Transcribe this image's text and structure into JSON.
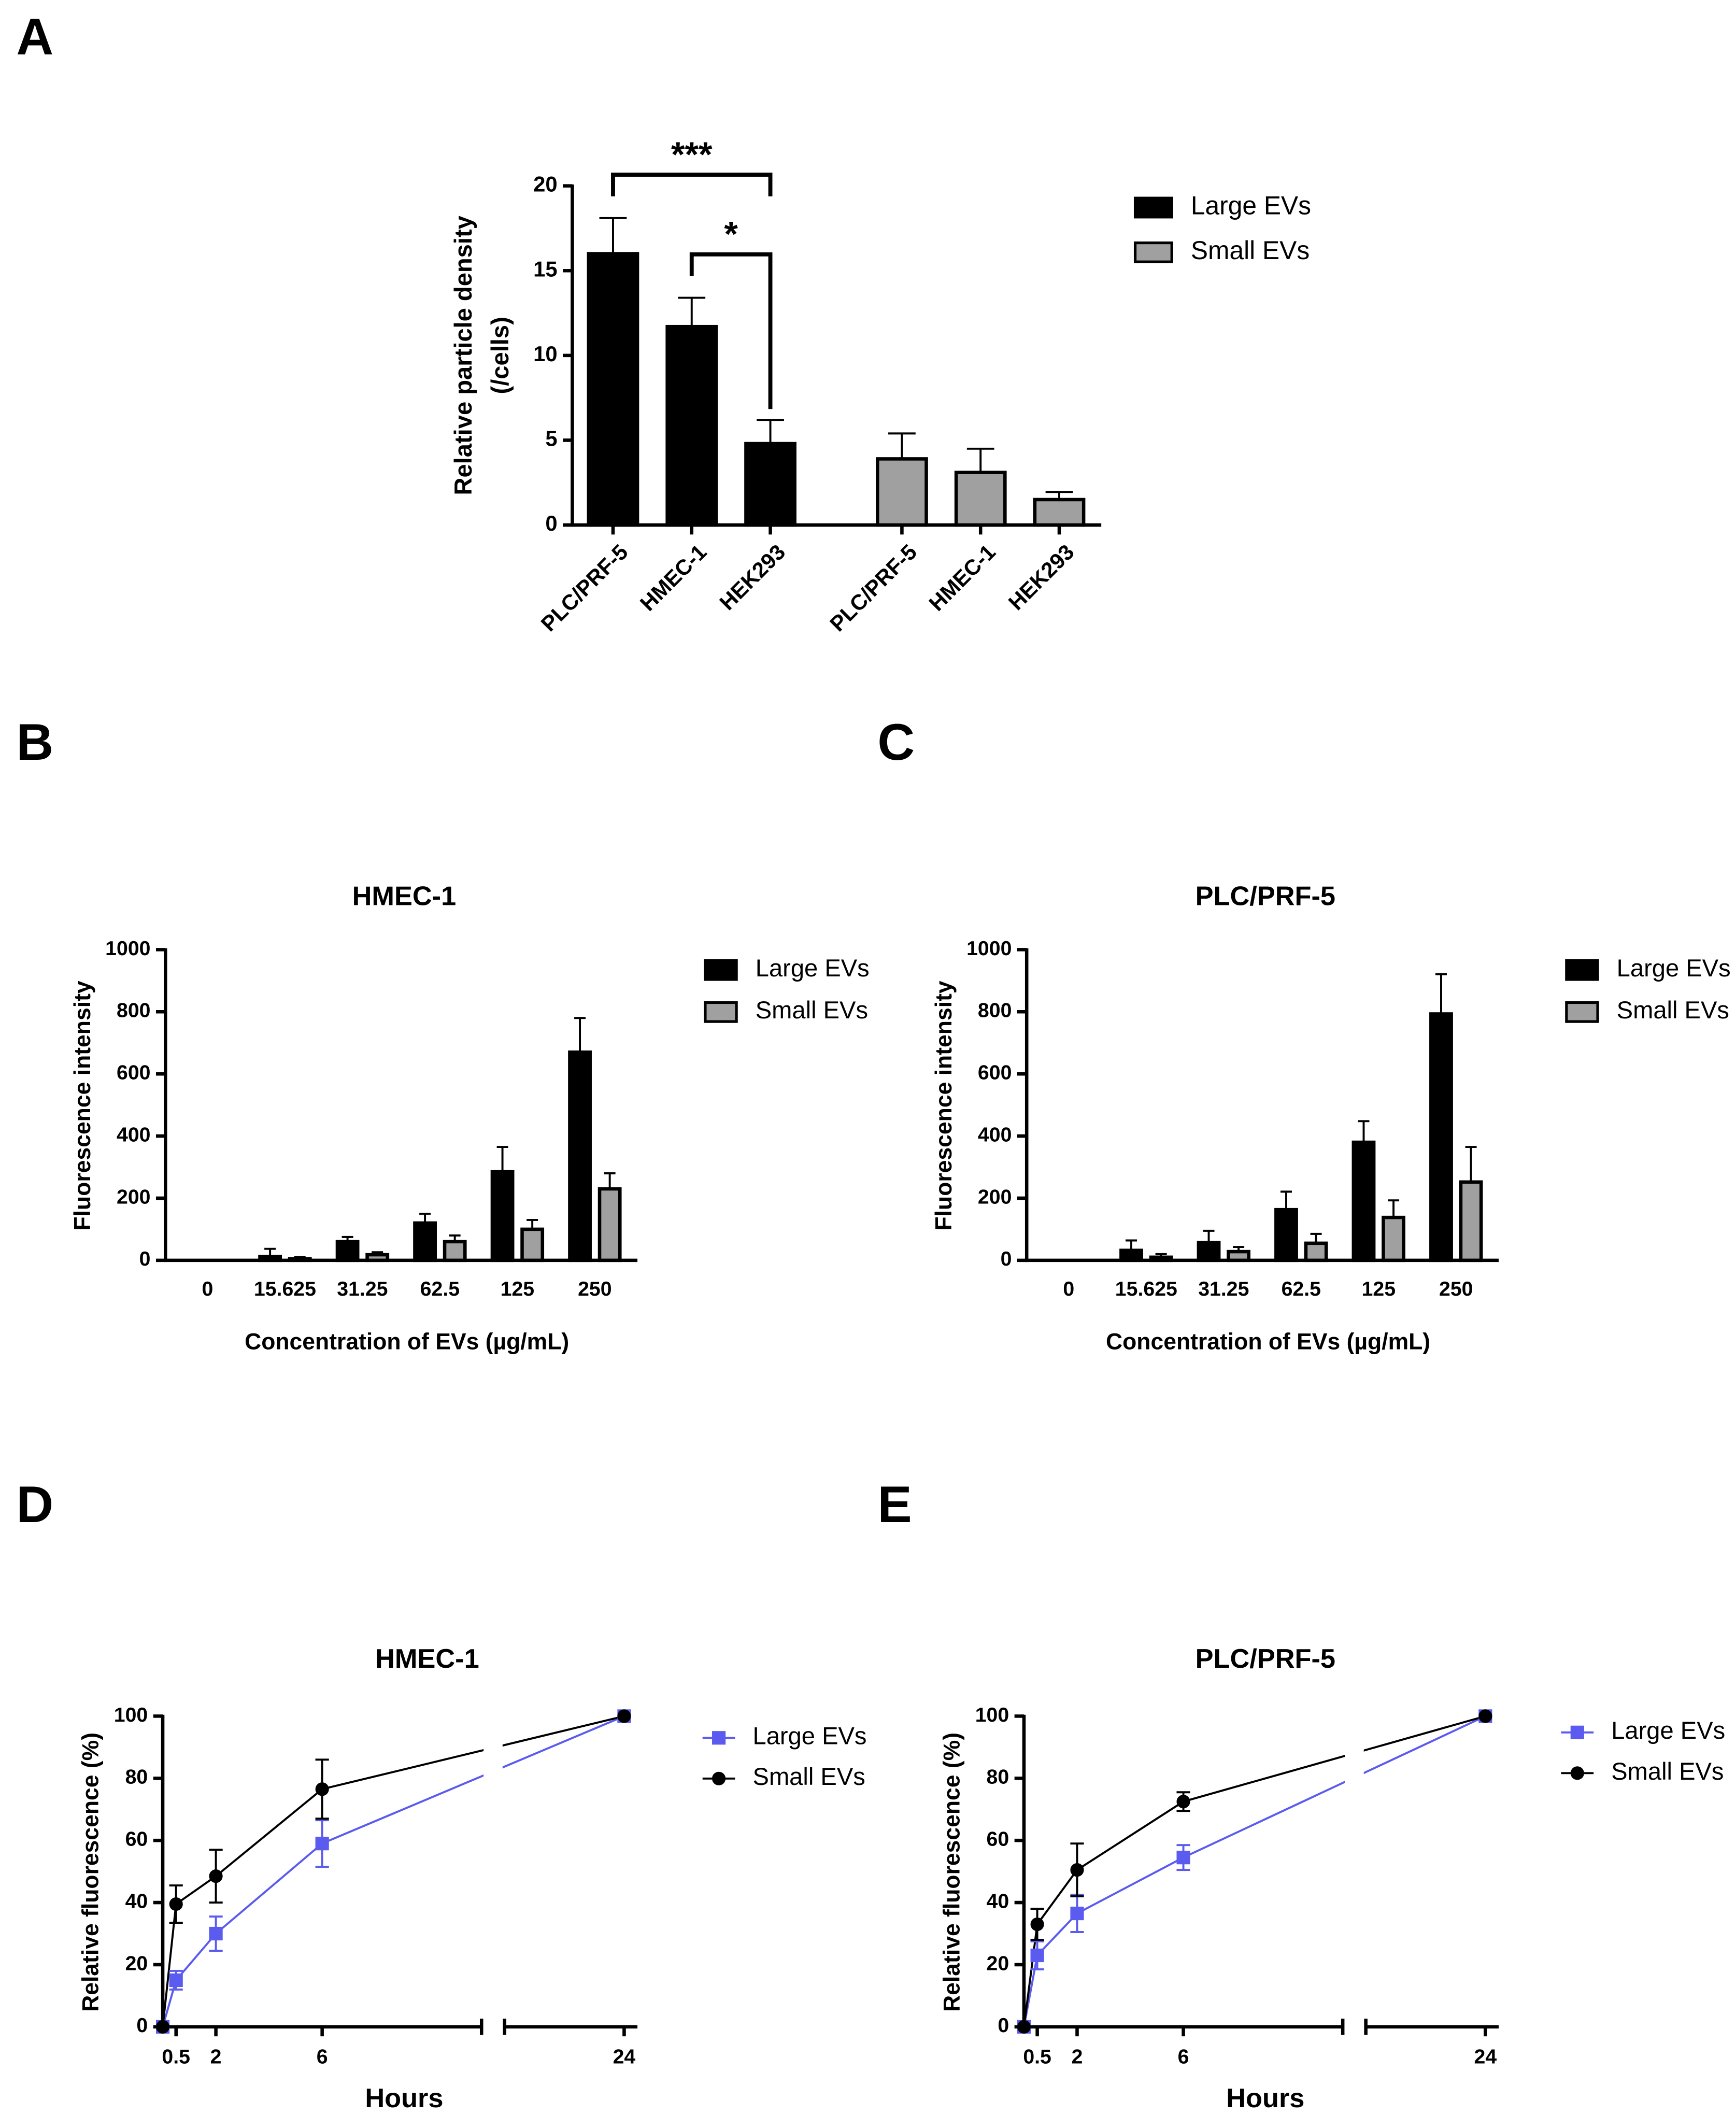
{
  "chart_data": [
    {
      "type": "bar",
      "panel_label": "A",
      "grouping": "series",
      "categories": [
        "PLC/PRF-5",
        "HMEC-1",
        "HEK293"
      ],
      "series": [
        {
          "name": "Large EVs",
          "color": "#000000",
          "values": [
            16,
            11.7,
            4.8
          ],
          "errors": [
            2.1,
            1.7,
            1.4
          ]
        },
        {
          "name": "Small EVs",
          "color": "#a0a0a0",
          "values": [
            3.9,
            3.1,
            1.5
          ],
          "errors": [
            1.5,
            1.4,
            0.45
          ]
        }
      ],
      "ylabel": [
        "Relative particle density",
        "(/cells)"
      ],
      "ylim": [
        0,
        20
      ],
      "yticks": [
        0,
        5,
        10,
        15,
        20
      ],
      "legend": "right",
      "annotations": [
        {
          "text": "***",
          "from": 0,
          "to": 2
        },
        {
          "text": "*",
          "from": 1,
          "to": 2
        }
      ]
    },
    {
      "type": "bar",
      "panel_label": "B",
      "grouping": "category",
      "title": "HMEC-1",
      "categories": [
        "0",
        "15.625",
        "31.25",
        "62.5",
        "125",
        "250"
      ],
      "series": [
        {
          "name": "Large EVs",
          "color": "#000000",
          "values": [
            0,
            12,
            60,
            120,
            285,
            670
          ],
          "errors": [
            0,
            25,
            15,
            30,
            80,
            110
          ]
        },
        {
          "name": "Small EVs",
          "color": "#a0a0a0",
          "values": [
            0,
            5,
            18,
            60,
            100,
            230
          ],
          "errors": [
            0,
            5,
            8,
            20,
            30,
            50
          ]
        }
      ],
      "xlabel": "Concentration of EVs (µg/mL)",
      "ylabel": [
        "Fluorescence intensity"
      ],
      "ylim": [
        0,
        1000
      ],
      "yticks": [
        0,
        200,
        400,
        600,
        800,
        1000
      ],
      "legend": "right"
    },
    {
      "type": "bar",
      "panel_label": "C",
      "grouping": "category",
      "title": "PLC/PRF-5",
      "categories": [
        "0",
        "15.625",
        "31.25",
        "62.5",
        "125",
        "250"
      ],
      "series": [
        {
          "name": "Large EVs",
          "color": "#000000",
          "values": [
            0,
            32,
            57,
            163,
            380,
            793
          ],
          "errors": [
            0,
            32,
            38,
            58,
            68,
            128
          ]
        },
        {
          "name": "Small EVs",
          "color": "#a0a0a0",
          "values": [
            0,
            10,
            28,
            55,
            138,
            252
          ],
          "errors": [
            0,
            10,
            15,
            30,
            55,
            113
          ]
        }
      ],
      "xlabel": "Concentration of EVs (µg/mL)",
      "ylabel": [
        "Fluorescence intensity"
      ],
      "ylim": [
        0,
        1000
      ],
      "yticks": [
        0,
        200,
        400,
        600,
        800,
        1000
      ],
      "legend": "right"
    },
    {
      "type": "line",
      "panel_label": "D",
      "title": "HMEC-1",
      "x": [
        0,
        0.5,
        2,
        6,
        24
      ],
      "series": [
        {
          "name": "Large EVs",
          "color": "#5b5bf0",
          "marker": "square",
          "values": [
            0,
            15,
            30,
            59,
            100
          ],
          "errors": [
            0,
            3,
            5.5,
            7.5,
            0
          ]
        },
        {
          "name": "Small EVs",
          "color": "#000000",
          "marker": "circle",
          "values": [
            0,
            39.5,
            48.5,
            76.5,
            100
          ],
          "errors": [
            0,
            6,
            8.5,
            9.5,
            0
          ]
        }
      ],
      "xlabel": "Hours",
      "ylabel": [
        "Relative fluorescence (%)"
      ],
      "xlim": [
        0,
        24.5
      ],
      "xbreak": [
        12,
        19.5
      ],
      "xticks": [
        0.5,
        2,
        6,
        24
      ],
      "ylim": [
        0,
        100
      ],
      "yticks": [
        0,
        20,
        40,
        60,
        80,
        100
      ],
      "legend": "right"
    },
    {
      "type": "line",
      "panel_label": "E",
      "title": "PLC/PRF-5",
      "x": [
        0,
        0.5,
        2,
        6,
        24
      ],
      "series": [
        {
          "name": "Large EVs",
          "color": "#5b5bf0",
          "marker": "square",
          "values": [
            0,
            23,
            36.5,
            54.5,
            100
          ],
          "errors": [
            0,
            4.5,
            6,
            4,
            0
          ]
        },
        {
          "name": "Small EVs",
          "color": "#000000",
          "marker": "circle",
          "values": [
            0,
            33,
            50.5,
            72.5,
            100
          ],
          "errors": [
            0,
            5,
            8.5,
            3,
            0
          ]
        }
      ],
      "xlabel": "Hours",
      "ylabel": [
        "Relative fluorescence (%)"
      ],
      "xlim": [
        0,
        24.5
      ],
      "xbreak": [
        12,
        19.5
      ],
      "xticks": [
        0.5,
        2,
        6,
        24
      ],
      "ylim": [
        0,
        100
      ],
      "yticks": [
        0,
        20,
        40,
        60,
        80,
        100
      ],
      "legend": "right"
    }
  ]
}
